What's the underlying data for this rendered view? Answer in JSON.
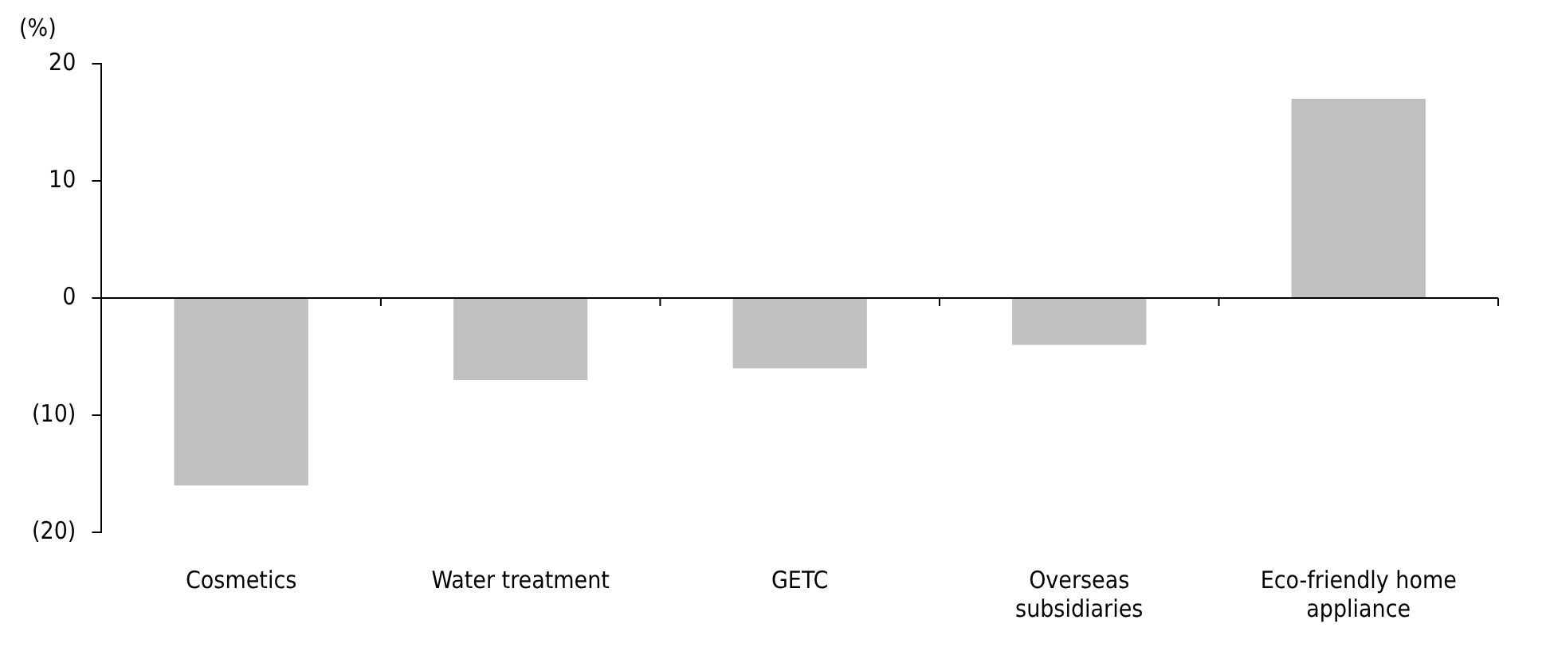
{
  "chart_data": {
    "type": "bar",
    "ylabel": "(%)",
    "categories": [
      "Cosmetics",
      "Water treatment",
      "GETC",
      "Overseas subsidiaries",
      "Eco-friendly home appliance"
    ],
    "values": [
      -16,
      -7,
      -6,
      -4,
      17
    ],
    "color": "#c0c0c0",
    "ylim": [
      -20,
      20
    ],
    "yticks": [
      {
        "value": -20,
        "label": "(20)"
      },
      {
        "value": -10,
        "label": "(10)"
      },
      0,
      10,
      20
    ]
  }
}
